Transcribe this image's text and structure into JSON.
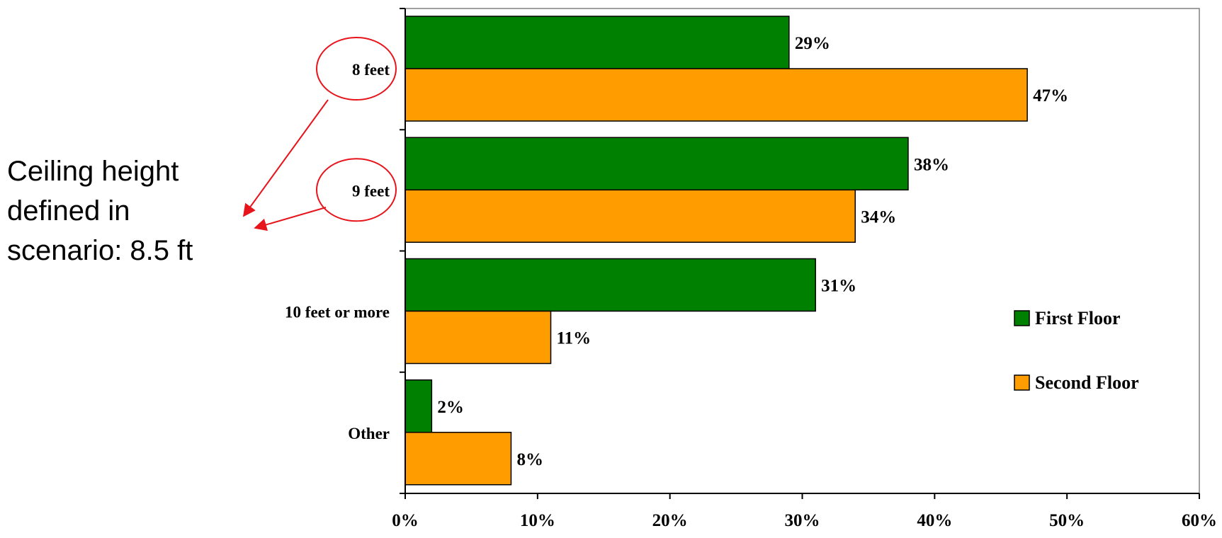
{
  "annotation": {
    "lines": [
      "Ceiling height",
      "defined in",
      "scenario: 8.5 ft"
    ],
    "circled_categories": [
      "8 feet",
      "9 feet"
    ],
    "color": "#e8141b"
  },
  "chart_data": {
    "type": "bar",
    "orientation": "horizontal",
    "categories": [
      "8 feet",
      "9 feet",
      "10 feet or more",
      "Other"
    ],
    "series": [
      {
        "name": "First Floor",
        "values": [
          29,
          38,
          31,
          2
        ],
        "color": "#008000"
      },
      {
        "name": "Second Floor",
        "values": [
          47,
          34,
          11,
          8
        ],
        "color": "#ff9c00"
      }
    ],
    "value_suffix": "%",
    "xlim": [
      0,
      60
    ],
    "xticks": [
      0,
      10,
      20,
      30,
      40,
      50,
      60
    ],
    "xtick_labels": [
      "0%",
      "10%",
      "20%",
      "30%",
      "40%",
      "50%",
      "60%"
    ],
    "title": "",
    "xlabel": "",
    "ylabel": "",
    "grid": false,
    "legend_position": "right"
  }
}
